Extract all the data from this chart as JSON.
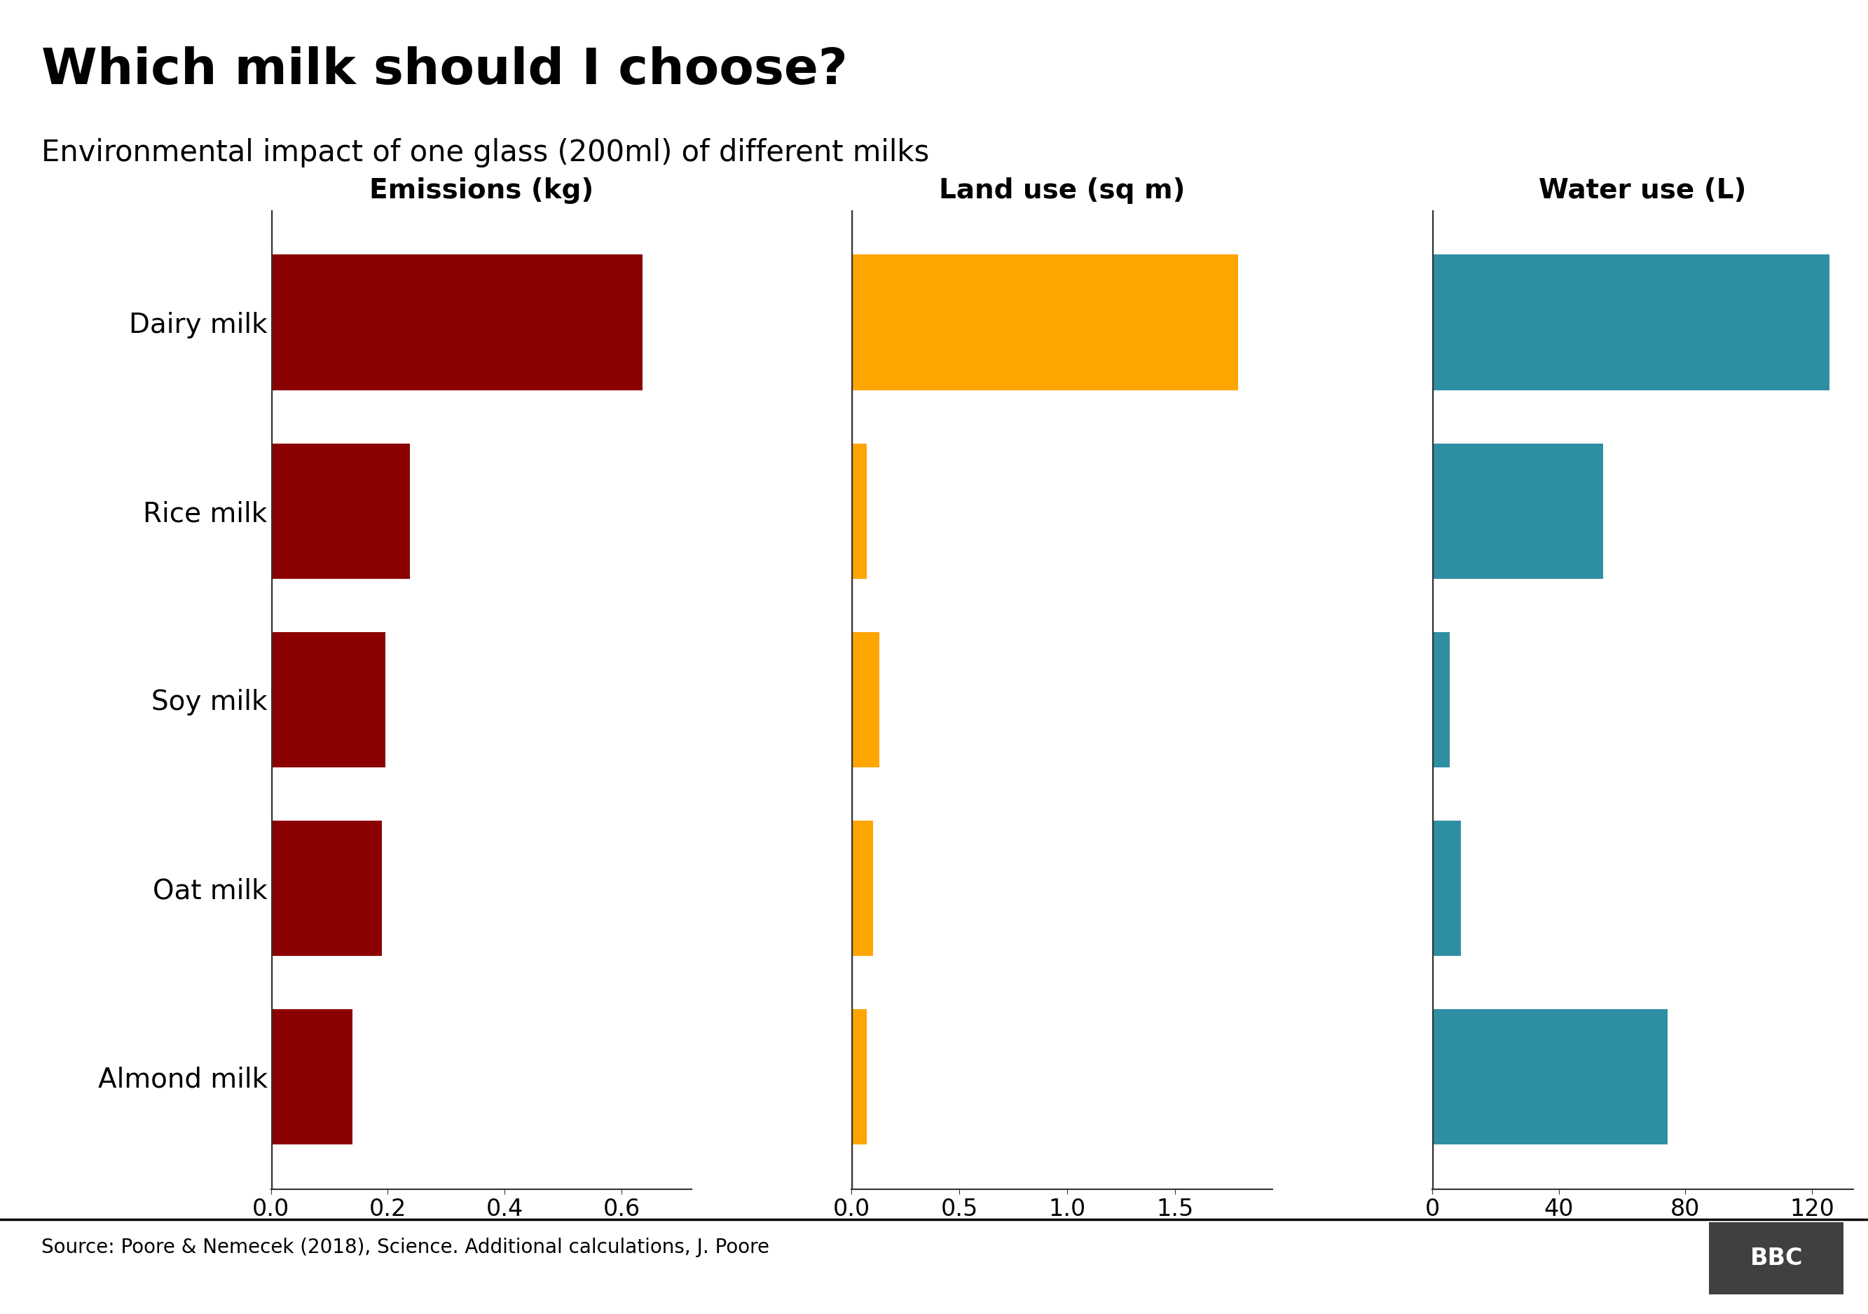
{
  "title": "Which milk should I choose?",
  "subtitle": "Environmental impact of one glass (200ml) of different milks",
  "categories": [
    "Dairy milk",
    "Rice milk",
    "Soy milk",
    "Oat milk",
    "Almond milk"
  ],
  "emissions": [
    0.636,
    0.238,
    0.196,
    0.19,
    0.14
  ],
  "land_use": [
    1.79,
    0.07,
    0.13,
    0.1,
    0.07
  ],
  "water_use": [
    125.6,
    54.0,
    5.54,
    9.1,
    74.3
  ],
  "emissions_color": "#8B0000",
  "land_use_color": "#FFA500",
  "water_use_color": "#2E8FA3",
  "emissions_xlim": [
    0,
    0.72
  ],
  "land_use_xlim": [
    0,
    1.95
  ],
  "water_use_xlim": [
    0,
    133
  ],
  "emissions_xticks": [
    0.0,
    0.2,
    0.4,
    0.6
  ],
  "land_use_xticks": [
    0.0,
    0.5,
    1.0,
    1.5
  ],
  "water_use_xticks": [
    0,
    40,
    80,
    120
  ],
  "emissions_label": "Emissions (kg)",
  "land_use_label": "Land use (sq m)",
  "water_use_label": "Water use (L)",
  "source_text": "Source: Poore & Nemecek (2018), Science. Additional calculations, J. Poore",
  "bbc_text": "BBC",
  "background_color": "#FFFFFF",
  "axis_line_color": "#333333",
  "title_fontsize": 52,
  "subtitle_fontsize": 30,
  "label_fontsize": 28,
  "tick_fontsize": 24,
  "category_fontsize": 28,
  "source_fontsize": 20,
  "bbc_fontsize": 24,
  "bar_height": 0.72
}
